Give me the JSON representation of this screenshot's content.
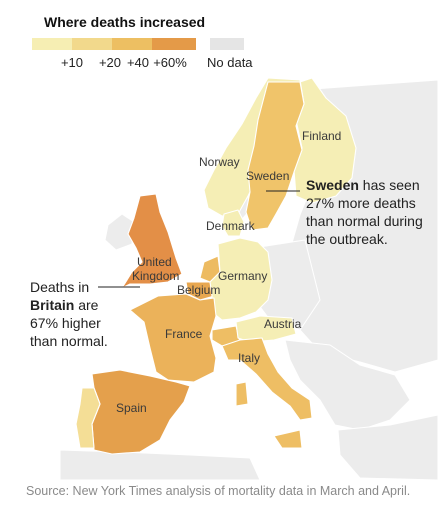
{
  "legend": {
    "title": "Where deaths increased",
    "ticks": [
      "+10",
      "+20",
      "+40",
      "+60%"
    ],
    "no_data": "No data",
    "colors": [
      "#f6eeb3",
      "#f2d98c",
      "#edbf62",
      "#e49a48"
    ],
    "no_data_color": "#e5e5e5"
  },
  "countries": [
    {
      "name": "Finland",
      "color": "#f5eeb5"
    },
    {
      "name": "Norway",
      "color": "#f5eeb5"
    },
    {
      "name": "Sweden",
      "color": "#f0c46a"
    },
    {
      "name": "Denmark",
      "color": "#f5eeb5"
    },
    {
      "name": "United Kingdom",
      "color": "#e38f47"
    },
    {
      "name": "Germany",
      "color": "#f5eeb5"
    },
    {
      "name": "Belgium",
      "color": "#e8a750"
    },
    {
      "name": "Netherlands",
      "color": "#edbb61"
    },
    {
      "name": "France",
      "color": "#ebb25a"
    },
    {
      "name": "Austria",
      "color": "#f5eeb5"
    },
    {
      "name": "Switzerland",
      "color": "#eebe64"
    },
    {
      "name": "Italy",
      "color": "#eebe64"
    },
    {
      "name": "Spain",
      "color": "#e4a04c"
    },
    {
      "name": "Portugal",
      "color": "#f4de96"
    }
  ],
  "labels": {
    "finland": "Finland",
    "norway": "Norway",
    "sweden": "Sweden",
    "denmark": "Denmark",
    "uk_line1": "United",
    "uk_line2": "Kingdom",
    "germany": "Germany",
    "belgium": "Belgium",
    "france": "France",
    "austria": "Austria",
    "italy": "Italy",
    "spain": "Spain"
  },
  "callouts": {
    "sweden_bold": "Sweden",
    "sweden_rest1": " has seen",
    "sweden_line2": "27% more deaths",
    "sweden_line3": "than normal during",
    "sweden_line4": "the outbreak.",
    "britain_line1": "Deaths in",
    "britain_bold": "Britain",
    "britain_rest2": " are",
    "britain_line3": "67% higher",
    "britain_line4": "than normal."
  },
  "source": "Source: New York Times analysis of mortality data in March and April."
}
